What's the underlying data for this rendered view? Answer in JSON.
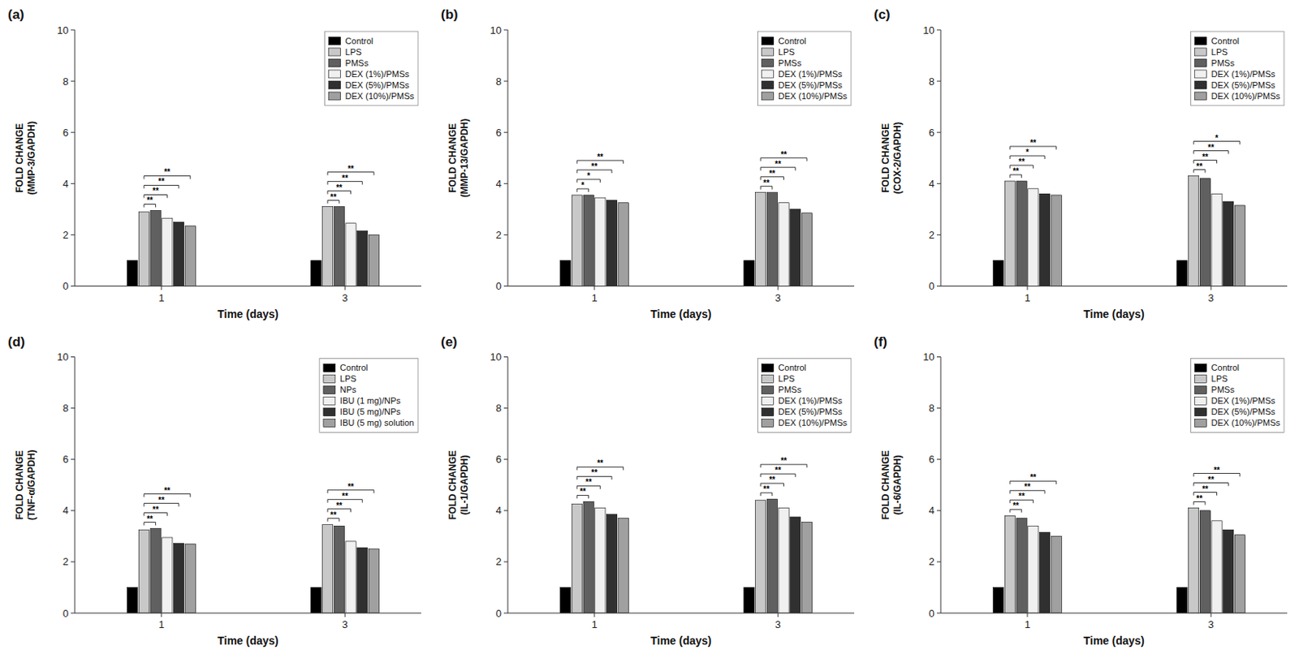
{
  "chart_data": [
    {
      "type": "bar",
      "title": "(a)",
      "xlabel": "Time (days)",
      "ylabel": "FOLD CHANGE\n(MMP-3/GAPDH)",
      "categories": [
        "1",
        "3"
      ],
      "series": [
        {
          "name": "Control",
          "color": "#000000",
          "values": [
            1.0,
            1.0
          ]
        },
        {
          "name": "LPS",
          "color": "#c8c8c8",
          "values": [
            2.9,
            3.1
          ]
        },
        {
          "name": "PMSs",
          "color": "#606060",
          "values": [
            2.95,
            3.1
          ]
        },
        {
          "name": "DEX (1%)/PMSs",
          "color": "#f0f0f0",
          "values": [
            2.65,
            2.45
          ]
        },
        {
          "name": "DEX (5%)/PMSs",
          "color": "#303030",
          "values": [
            2.5,
            2.15
          ]
        },
        {
          "name": "DEX (10%)/PMSs",
          "color": "#a0a0a0",
          "values": [
            2.35,
            2.0
          ]
        }
      ],
      "annotations": [
        {
          "text": "**",
          "category": "1",
          "from": "LPS",
          "to": "PMSs"
        },
        {
          "text": "**",
          "category": "1",
          "from": "LPS",
          "to": "DEX (1%)/PMSs"
        },
        {
          "text": "**",
          "category": "1",
          "from": "LPS",
          "to": "DEX (5%)/PMSs"
        },
        {
          "text": "**",
          "category": "1",
          "from": "LPS",
          "to": "DEX (10%)/PMSs"
        },
        {
          "text": "**",
          "category": "3",
          "from": "LPS",
          "to": "PMSs"
        },
        {
          "text": "**",
          "category": "3",
          "from": "LPS",
          "to": "DEX (1%)/PMSs"
        },
        {
          "text": "**",
          "category": "3",
          "from": "LPS",
          "to": "DEX (5%)/PMSs"
        },
        {
          "text": "**",
          "category": "3",
          "from": "LPS",
          "to": "DEX (10%)/PMSs"
        }
      ],
      "ylim": [
        0,
        10
      ],
      "yticks": [
        0,
        2,
        4,
        6,
        8,
        10
      ],
      "grid": false,
      "legend": "upper right"
    },
    {
      "type": "bar",
      "title": "(b)",
      "xlabel": "Time (days)",
      "ylabel": "FOLD CHANGE\n(MMP-13/GAPDH)",
      "categories": [
        "1",
        "3"
      ],
      "series": [
        {
          "name": "Control",
          "color": "#000000",
          "values": [
            1.0,
            1.0
          ]
        },
        {
          "name": "LPS",
          "color": "#c8c8c8",
          "values": [
            3.55,
            3.65
          ]
        },
        {
          "name": "PMSs",
          "color": "#606060",
          "values": [
            3.55,
            3.65
          ]
        },
        {
          "name": "DEX (1%)/PMSs",
          "color": "#f0f0f0",
          "values": [
            3.45,
            3.25
          ]
        },
        {
          "name": "DEX (5%)/PMSs",
          "color": "#303030",
          "values": [
            3.35,
            3.0
          ]
        },
        {
          "name": "DEX (10%)/PMSs",
          "color": "#a0a0a0",
          "values": [
            3.25,
            2.85
          ]
        }
      ],
      "annotations": [
        {
          "text": "*",
          "category": "1",
          "from": "LPS",
          "to": "PMSs"
        },
        {
          "text": "*",
          "category": "1",
          "from": "LPS",
          "to": "DEX (1%)/PMSs"
        },
        {
          "text": "**",
          "category": "1",
          "from": "LPS",
          "to": "DEX (5%)/PMSs"
        },
        {
          "text": "**",
          "category": "1",
          "from": "LPS",
          "to": "DEX (10%)/PMSs"
        },
        {
          "text": "**",
          "category": "3",
          "from": "LPS",
          "to": "PMSs"
        },
        {
          "text": "**",
          "category": "3",
          "from": "LPS",
          "to": "DEX (1%)/PMSs"
        },
        {
          "text": "**",
          "category": "3",
          "from": "LPS",
          "to": "DEX (5%)/PMSs"
        },
        {
          "text": "**",
          "category": "3",
          "from": "LPS",
          "to": "DEX (10%)/PMSs"
        }
      ],
      "ylim": [
        0,
        10
      ],
      "yticks": [
        0,
        2,
        4,
        6,
        8,
        10
      ],
      "grid": false,
      "legend": "upper right"
    },
    {
      "type": "bar",
      "title": "(c)",
      "xlabel": "Time (days)",
      "ylabel": "FOLD CHANGE\n(COX-2/GAPDH)",
      "categories": [
        "1",
        "3"
      ],
      "series": [
        {
          "name": "Control",
          "color": "#000000",
          "values": [
            1.0,
            1.0
          ]
        },
        {
          "name": "LPS",
          "color": "#c8c8c8",
          "values": [
            4.1,
            4.3
          ]
        },
        {
          "name": "PMSs",
          "color": "#606060",
          "values": [
            4.1,
            4.2
          ]
        },
        {
          "name": "DEX (1%)/PMSs",
          "color": "#f0f0f0",
          "values": [
            3.8,
            3.6
          ]
        },
        {
          "name": "DEX (5%)/PMSs",
          "color": "#303030",
          "values": [
            3.6,
            3.3
          ]
        },
        {
          "name": "DEX (10%)/PMSs",
          "color": "#a0a0a0",
          "values": [
            3.55,
            3.15
          ]
        }
      ],
      "annotations": [
        {
          "text": "**",
          "category": "1",
          "from": "LPS",
          "to": "PMSs"
        },
        {
          "text": "**",
          "category": "1",
          "from": "LPS",
          "to": "DEX (1%)/PMSs"
        },
        {
          "text": "*",
          "category": "1",
          "from": "LPS",
          "to": "DEX (5%)/PMSs"
        },
        {
          "text": "**",
          "category": "1",
          "from": "LPS",
          "to": "DEX (10%)/PMSs"
        },
        {
          "text": "**",
          "category": "3",
          "from": "LPS",
          "to": "PMSs"
        },
        {
          "text": "**",
          "category": "3",
          "from": "LPS",
          "to": "DEX (1%)/PMSs"
        },
        {
          "text": "**",
          "category": "3",
          "from": "LPS",
          "to": "DEX (5%)/PMSs"
        },
        {
          "text": "*",
          "category": "3",
          "from": "LPS",
          "to": "DEX (10%)/PMSs"
        }
      ],
      "ylim": [
        0,
        10
      ],
      "yticks": [
        0,
        2,
        4,
        6,
        8,
        10
      ],
      "grid": false,
      "legend": "upper right"
    },
    {
      "type": "bar",
      "title": "(d)",
      "xlabel": "Time (days)",
      "ylabel": "FOLD CHANGE\n(TNF-α/GAPDH)",
      "categories": [
        "1",
        "3"
      ],
      "series": [
        {
          "name": "Control",
          "color": "#000000",
          "values": [
            1.0,
            1.0
          ]
        },
        {
          "name": "LPS",
          "color": "#c8c8c8",
          "values": [
            3.25,
            3.45
          ]
        },
        {
          "name": "NPs",
          "color": "#606060",
          "values": [
            3.3,
            3.4
          ]
        },
        {
          "name": "IBU (1 mg)/NPs",
          "color": "#f0f0f0",
          "values": [
            2.95,
            2.8
          ]
        },
        {
          "name": "IBU (5 mg)/NPs",
          "color": "#303030",
          "values": [
            2.72,
            2.55
          ]
        },
        {
          "name": "IBU (5 mg) solution",
          "color": "#a0a0a0",
          "values": [
            2.7,
            2.5
          ]
        }
      ],
      "annotations": [
        {
          "text": "**",
          "category": "1",
          "from": "LPS",
          "to": "NPs"
        },
        {
          "text": "**",
          "category": "1",
          "from": "LPS",
          "to": "IBU (1 mg)/NPs"
        },
        {
          "text": "**",
          "category": "1",
          "from": "LPS",
          "to": "IBU (5 mg)/NPs"
        },
        {
          "text": "**",
          "category": "1",
          "from": "LPS",
          "to": "IBU (5 mg) solution"
        },
        {
          "text": "**",
          "category": "3",
          "from": "LPS",
          "to": "NPs"
        },
        {
          "text": "**",
          "category": "3",
          "from": "LPS",
          "to": "IBU (1 mg)/NPs"
        },
        {
          "text": "**",
          "category": "3",
          "from": "LPS",
          "to": "IBU (5 mg)/NPs"
        },
        {
          "text": "**",
          "category": "3",
          "from": "LPS",
          "to": "IBU (5 mg) solution"
        }
      ],
      "ylim": [
        0,
        10
      ],
      "yticks": [
        0,
        2,
        4,
        6,
        8,
        10
      ],
      "grid": false,
      "legend": "upper right"
    },
    {
      "type": "bar",
      "title": "(e)",
      "xlabel": "Time (days)",
      "ylabel": "FOLD CHANGE\n(IL-1/GAPDH)",
      "categories": [
        "1",
        "3"
      ],
      "series": [
        {
          "name": "Control",
          "color": "#000000",
          "values": [
            1.0,
            1.0
          ]
        },
        {
          "name": "LPS",
          "color": "#c8c8c8",
          "values": [
            4.25,
            4.4
          ]
        },
        {
          "name": "PMSs",
          "color": "#606060",
          "values": [
            4.35,
            4.45
          ]
        },
        {
          "name": "DEX (1%)/PMSs",
          "color": "#f0f0f0",
          "values": [
            4.1,
            4.1
          ]
        },
        {
          "name": "DEX (5%)/PMSs",
          "color": "#303030",
          "values": [
            3.85,
            3.75
          ]
        },
        {
          "name": "DEX (10%)/PMSs",
          "color": "#a0a0a0",
          "values": [
            3.7,
            3.55
          ]
        }
      ],
      "annotations": [
        {
          "text": "**",
          "category": "1",
          "from": "LPS",
          "to": "PMSs"
        },
        {
          "text": "**",
          "category": "1",
          "from": "LPS",
          "to": "DEX (1%)/PMSs"
        },
        {
          "text": "**",
          "category": "1",
          "from": "LPS",
          "to": "DEX (5%)/PMSs"
        },
        {
          "text": "**",
          "category": "1",
          "from": "LPS",
          "to": "DEX (10%)/PMSs"
        },
        {
          "text": "**",
          "category": "3",
          "from": "LPS",
          "to": "PMSs"
        },
        {
          "text": "**",
          "category": "3",
          "from": "LPS",
          "to": "DEX (1%)/PMSs"
        },
        {
          "text": "**",
          "category": "3",
          "from": "LPS",
          "to": "DEX (5%)/PMSs"
        },
        {
          "text": "**",
          "category": "3",
          "from": "LPS",
          "to": "DEX (10%)/PMSs"
        }
      ],
      "ylim": [
        0,
        10
      ],
      "yticks": [
        0,
        2,
        4,
        6,
        8,
        10
      ],
      "grid": false,
      "legend": "upper right"
    },
    {
      "type": "bar",
      "title": "(f)",
      "xlabel": "Time (days)",
      "ylabel": "FOLD CHANGE\n(IL-6/GAPDH)",
      "categories": [
        "1",
        "3"
      ],
      "series": [
        {
          "name": "Control",
          "color": "#000000",
          "values": [
            1.0,
            1.0
          ]
        },
        {
          "name": "LPS",
          "color": "#c8c8c8",
          "values": [
            3.8,
            4.1
          ]
        },
        {
          "name": "PMSs",
          "color": "#606060",
          "values": [
            3.7,
            4.0
          ]
        },
        {
          "name": "DEX (1%)/PMSs",
          "color": "#f0f0f0",
          "values": [
            3.4,
            3.6
          ]
        },
        {
          "name": "DEX (5%)/PMSs",
          "color": "#303030",
          "values": [
            3.15,
            3.25
          ]
        },
        {
          "name": "DEX (10%)/PMSs",
          "color": "#a0a0a0",
          "values": [
            3.0,
            3.05
          ]
        }
      ],
      "annotations": [
        {
          "text": "**",
          "category": "1",
          "from": "LPS",
          "to": "PMSs"
        },
        {
          "text": "**",
          "category": "1",
          "from": "LPS",
          "to": "DEX (1%)/PMSs"
        },
        {
          "text": "**",
          "category": "1",
          "from": "LPS",
          "to": "DEX (5%)/PMSs"
        },
        {
          "text": "**",
          "category": "1",
          "from": "LPS",
          "to": "DEX (10%)/PMSs"
        },
        {
          "text": "**",
          "category": "3",
          "from": "LPS",
          "to": "PMSs"
        },
        {
          "text": "**",
          "category": "3",
          "from": "LPS",
          "to": "DEX (1%)/PMSs"
        },
        {
          "text": "**",
          "category": "3",
          "from": "LPS",
          "to": "DEX (5%)/PMSs"
        },
        {
          "text": "**",
          "category": "3",
          "from": "LPS",
          "to": "DEX (10%)/PMSs"
        }
      ],
      "ylim": [
        0,
        10
      ],
      "yticks": [
        0,
        2,
        4,
        6,
        8,
        10
      ],
      "grid": false,
      "legend": "upper right"
    }
  ]
}
